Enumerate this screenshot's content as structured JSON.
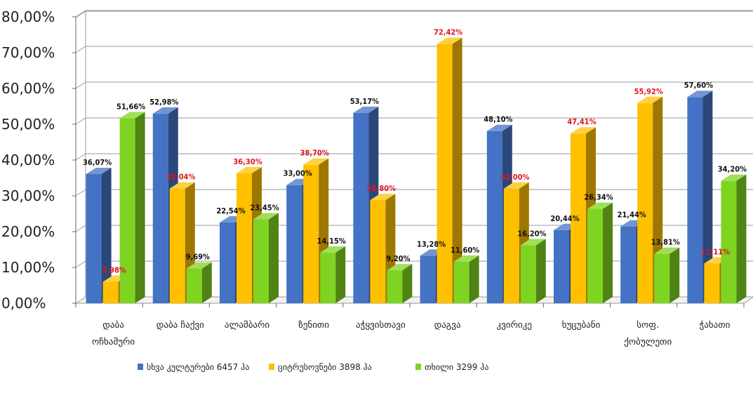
{
  "chart_data": {
    "type": "bar",
    "title": "",
    "xlabel": "",
    "ylabel": "",
    "ylim": [
      0,
      80
    ],
    "yticks": [
      "0,00%",
      "10,00%",
      "20,00%",
      "30,00%",
      "40,00%",
      "50,00%",
      "60,00%",
      "70,00%",
      "80,00%"
    ],
    "grid": true,
    "legend_position": "bottom",
    "categories": [
      [
        "დაბა",
        "ოჩხამური"
      ],
      [
        "დაბა ჩაქვი"
      ],
      [
        "ალამბარი"
      ],
      [
        "ზენითი"
      ],
      [
        "აჭყვისთავი"
      ],
      [
        "დაგვა"
      ],
      [
        "კვირიკე"
      ],
      [
        "ხუცუბანი"
      ],
      [
        "სოფ.",
        "ქობულეთი"
      ],
      [
        "ჭახათი"
      ]
    ],
    "series": [
      {
        "name": "სხვა კულტურები 6457 ჰა",
        "color": "#4472C4",
        "values": [
          36.07,
          52.98,
          22.54,
          33.0,
          53.17,
          13.28,
          48.1,
          20.44,
          21.44,
          57.6
        ],
        "labels": [
          "36,07%",
          "52,98%",
          "22,54%",
          "33,00%",
          "53,17%",
          "13,28%",
          "48,10%",
          "20,44%",
          "21,44%",
          "57,60%"
        ],
        "label_color": "#111111"
      },
      {
        "name": "ციტრუსოვნები 3898 ჰა",
        "color": "#FFC000",
        "values": [
          5.98,
          32.04,
          36.3,
          38.7,
          28.8,
          72.42,
          32.0,
          47.41,
          55.92,
          11.11
        ],
        "labels": [
          "5,98%",
          "32,04%",
          "36,30%",
          "38,70%",
          "28,80%",
          "72,42%",
          "32,00%",
          "47,41%",
          "55,92%",
          "11,11%"
        ],
        "label_color": "#E0141E"
      },
      {
        "name": "თხილი 3299  ჰა",
        "color": "#7FD421",
        "values": [
          51.66,
          9.69,
          23.45,
          14.15,
          9.2,
          11.6,
          16.2,
          26.34,
          13.81,
          34.2
        ],
        "labels": [
          "51,66%",
          "9,69%",
          "23,45%",
          "14,15%",
          "9,20%",
          "11,60%",
          "16,20%",
          "26,34%",
          "13,81%",
          "34,20%"
        ],
        "label_color": "#111111"
      }
    ]
  }
}
